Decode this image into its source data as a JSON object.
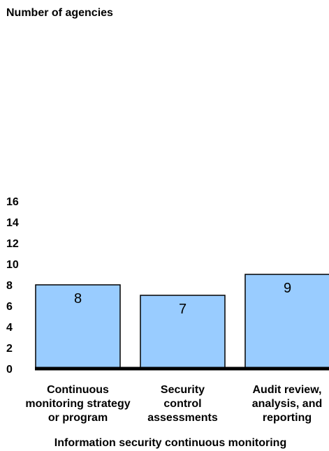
{
  "chart_data": {
    "type": "bar",
    "categories": [
      [
        "Continuous",
        "monitoring strategy",
        "or program"
      ],
      [
        "Security",
        "control",
        "assessments"
      ],
      [
        "Audit review,",
        "analysis, and",
        "reporting"
      ]
    ],
    "values": [
      8,
      7,
      9
    ],
    "value_labels": [
      "8",
      "7",
      "9"
    ],
    "y_ticks": [
      "0",
      "2",
      "4",
      "6",
      "8",
      "10",
      "12",
      "14",
      "16"
    ],
    "ylabel": "Number of agencies",
    "xlabel": "Information security continuous monitoring",
    "ylim": [
      0,
      16
    ],
    "grid": false,
    "legend": "none",
    "colors": {
      "bar_fill": "#99CCFF",
      "bar_stroke": "#000000",
      "axis": "#000000",
      "text": "#000000"
    }
  }
}
